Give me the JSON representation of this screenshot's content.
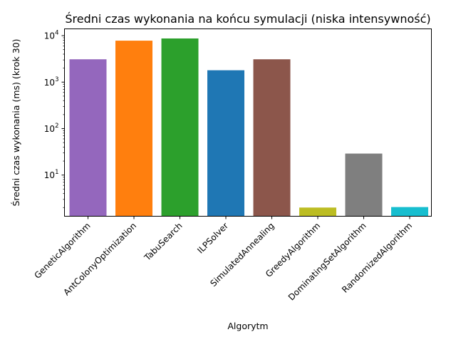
{
  "chart_data": {
    "type": "bar",
    "title": "Średni czas wykonania na końcu symulacji (niska intensywność)",
    "xlabel": "Algorytm",
    "ylabel": "Średni czas wykonania (ms) (krok 30)",
    "yscale": "log",
    "ylim": [
      1.3,
      14000
    ],
    "yticks": [
      {
        "value": 10,
        "base": "10",
        "exp": "1"
      },
      {
        "value": 100,
        "base": "10",
        "exp": "2"
      },
      {
        "value": 1000,
        "base": "10",
        "exp": "3"
      },
      {
        "value": 10000,
        "base": "10",
        "exp": "4"
      }
    ],
    "categories": [
      "GeneticAlgorithm",
      "AntColonyOptimization",
      "TabuSearch",
      "ILPSolver",
      "SimulatedAnnealing",
      "GreedyAlgorithm",
      "DominatingSetAlgorithm",
      "RandomizedAlgorithm"
    ],
    "values": [
      3100,
      7800,
      8700,
      1800,
      3100,
      2.0,
      29,
      2.05
    ],
    "colors": [
      "#9467bd",
      "#ff7f0e",
      "#2ca02c",
      "#1f77b4",
      "#8c564b",
      "#bcbd22",
      "#7f7f7f",
      "#17becf"
    ],
    "grid": false,
    "legend": "none"
  }
}
